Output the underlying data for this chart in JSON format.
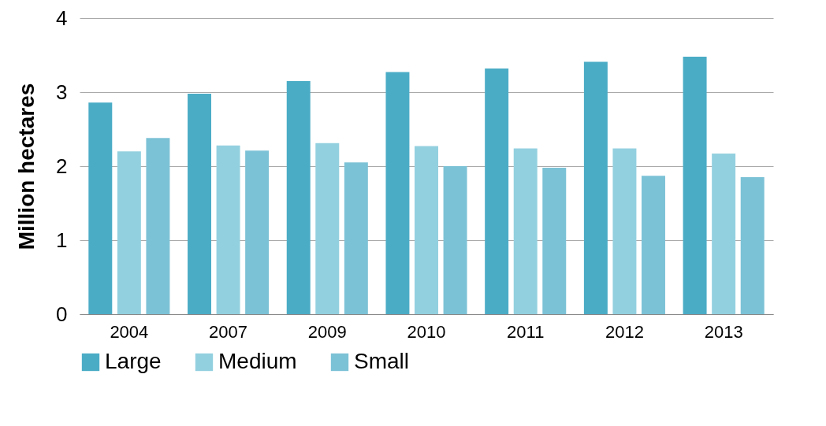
{
  "chart_data": {
    "type": "bar",
    "ylabel": "Million hectares",
    "categories": [
      "2004",
      "2007",
      "2009",
      "2010",
      "2011",
      "2012",
      "2013"
    ],
    "series": [
      {
        "name": "Large",
        "color": "#4bacc6",
        "values": [
          2.86,
          2.98,
          3.15,
          3.27,
          3.32,
          3.41,
          3.48
        ]
      },
      {
        "name": "Medium",
        "color": "#93d0df",
        "values": [
          2.2,
          2.28,
          2.31,
          2.27,
          2.24,
          2.24,
          2.17
        ]
      },
      {
        "name": "Small",
        "color": "#7cc2d6",
        "values": [
          2.38,
          2.21,
          2.05,
          2.0,
          1.98,
          1.87,
          1.85
        ]
      }
    ],
    "ylim": [
      0,
      4
    ],
    "yticks": [
      0,
      1,
      2,
      3,
      4
    ],
    "grid": "y",
    "legend": "bottom"
  }
}
